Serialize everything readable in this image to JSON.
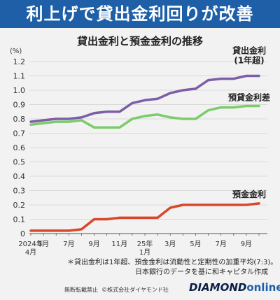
{
  "header": {
    "title": "利上げで貸出金利回りが改善"
  },
  "footer": {
    "notice": "無断転載禁止",
    "copyright": "©株式会社ダイヤモンド社",
    "brand_main": "DIAMOND",
    "brand_sub": "online"
  },
  "chart_data": {
    "type": "line",
    "title": "貸出金利と預金金利の推移",
    "unit_label": "(%)",
    "ylim": [
      0,
      1.2
    ],
    "y_ticks": [
      "0",
      "0.1",
      "0.2",
      "0.3",
      "0.4",
      "0.5",
      "0.6",
      "0.7",
      "0.8",
      "0.9",
      "1.0",
      "1.1",
      "1.2"
    ],
    "x": [
      "2024-04",
      "2024-05",
      "2024-06",
      "2024-07",
      "2024-08",
      "2024-09",
      "2024-10",
      "2024-11",
      "2024-12",
      "2025-01",
      "2025-02",
      "2025-03",
      "2025-04",
      "2025-05",
      "2025-06",
      "2025-07",
      "2025-08",
      "2025-09",
      "2025-10"
    ],
    "x_tick_labels": [
      {
        "index": 0,
        "line1": "2024年",
        "line2": "4月"
      },
      {
        "index": 1,
        "line1": "5月",
        "line2": ""
      },
      {
        "index": 3,
        "line1": "7月",
        "line2": ""
      },
      {
        "index": 5,
        "line1": "9月",
        "line2": ""
      },
      {
        "index": 7,
        "line1": "11月",
        "line2": ""
      },
      {
        "index": 9,
        "line1": "25年",
        "line2": "1月"
      },
      {
        "index": 11,
        "line1": "3月",
        "line2": ""
      },
      {
        "index": 13,
        "line1": "5月",
        "line2": ""
      },
      {
        "index": 15,
        "line1": "7月",
        "line2": ""
      },
      {
        "index": 17,
        "line1": "9月",
        "line2": ""
      }
    ],
    "series": [
      {
        "name": "貸出金利",
        "label": "貸出金利",
        "label2": "(1年超)",
        "color": "#7b5ea7",
        "values": [
          0.78,
          0.79,
          0.8,
          0.8,
          0.81,
          0.84,
          0.85,
          0.85,
          0.91,
          0.93,
          0.94,
          0.98,
          1.0,
          1.01,
          1.07,
          1.08,
          1.08,
          1.1,
          1.1
        ]
      },
      {
        "name": "預貸金利差",
        "label": "預貸金利差",
        "label2": "",
        "color": "#7ccc6b",
        "values": [
          0.76,
          0.77,
          0.78,
          0.78,
          0.79,
          0.74,
          0.74,
          0.74,
          0.8,
          0.82,
          0.83,
          0.81,
          0.8,
          0.8,
          0.86,
          0.88,
          0.88,
          0.89,
          0.89
        ]
      },
      {
        "name": "預金金利",
        "label": "預金金利",
        "label2": "",
        "color": "#d9472b",
        "values": [
          0.02,
          0.02,
          0.02,
          0.02,
          0.03,
          0.1,
          0.1,
          0.11,
          0.11,
          0.11,
          0.11,
          0.18,
          0.2,
          0.2,
          0.2,
          0.2,
          0.2,
          0.2,
          0.21
        ]
      }
    ],
    "notes": [
      "＊貸出金利は1年超、預金金利は流動性と定期性の加重平均(7:3)。",
      "日本銀行のデータを基に和キャピタル作成"
    ],
    "grid": true,
    "legend": "inline-right"
  }
}
